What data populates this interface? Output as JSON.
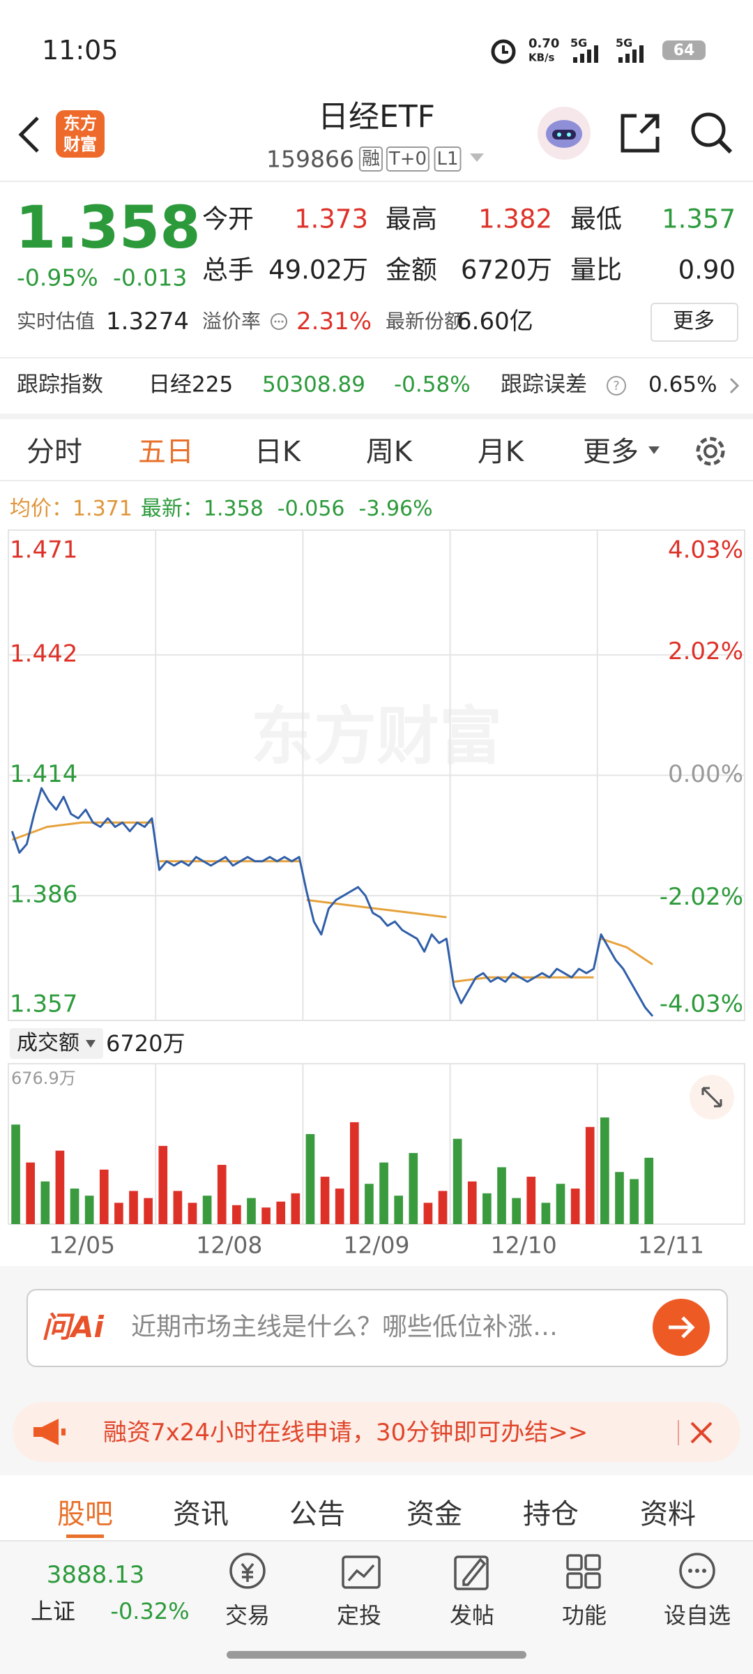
{
  "status": {
    "time": "11:05",
    "speed": "0.70",
    "speed_unit": "KB/s",
    "net1": "5G",
    "net2": "5G",
    "battery": "64"
  },
  "header": {
    "logo": [
      "东方",
      "财富"
    ],
    "title": "日经ETF",
    "code": "159866",
    "tags": [
      "融",
      "T+0",
      "L1"
    ]
  },
  "quote": {
    "price": "1.358",
    "change_pct": "-0.95%",
    "change": "-0.013",
    "stats": [
      [
        "今开",
        "1.373"
      ],
      [
        "最高",
        "1.382"
      ],
      [
        "最低",
        "1.357"
      ],
      [
        "总手",
        "49.02万"
      ],
      [
        "金额",
        "6720万"
      ],
      [
        "量比",
        "0.90"
      ]
    ],
    "estimate_label": "实时估值",
    "estimate": "1.3274",
    "premium_label": "溢价率",
    "premium": "2.31%",
    "shares_label": "最新份额",
    "shares": "6.60亿",
    "more": "更多"
  },
  "tracking": {
    "label": "跟踪指数",
    "index": "日经225",
    "value": "50308.89",
    "change": "-0.58%",
    "error_label": "跟踪误差",
    "error": "0.65%"
  },
  "tabs": [
    "分时",
    "五日",
    "日K",
    "周K",
    "月K",
    "更多"
  ],
  "chart_data": {
    "type": "line",
    "legend": {
      "avg_label": "均价：",
      "avg": "1.371",
      "last_label": "最新：",
      "last": "1.358",
      "change": "-0.056",
      "change_pct": "-3.96%"
    },
    "watermark": "东方财富",
    "categories": [
      "12/05",
      "12/08",
      "12/09",
      "12/10",
      "12/11"
    ],
    "ylim": [
      1.357,
      1.471
    ],
    "yticks": [
      1.357,
      1.386,
      1.414,
      1.442,
      1.471
    ],
    "y2lim": [
      -4.03,
      4.03
    ],
    "y2ticks": [
      {
        "value": -4.03,
        "label": "-4.03%"
      },
      {
        "value": -2.02,
        "label": "-2.02%"
      },
      {
        "value": 0,
        "label": "0.00%"
      },
      {
        "value": 2.02,
        "label": "2.02%"
      },
      {
        "value": 4.03,
        "label": "4.03%"
      }
    ],
    "price": {
      "color": "#2f5ea8",
      "sessions": [
        [
          1.401,
          1.396,
          1.398,
          1.405,
          1.411,
          1.408,
          1.406,
          1.409,
          1.405,
          1.404,
          1.406,
          1.403,
          1.402,
          1.404,
          1.402,
          1.403,
          1.401,
          1.403,
          1.402,
          1.404
        ],
        [
          1.392,
          1.394,
          1.393,
          1.394,
          1.393,
          1.395,
          1.394,
          1.393,
          1.394,
          1.395,
          1.393,
          1.394,
          1.395,
          1.394,
          1.394,
          1.395,
          1.394,
          1.395,
          1.394,
          1.395
        ],
        [
          1.387,
          1.38,
          1.377,
          1.383,
          1.385,
          1.386,
          1.387,
          1.388,
          1.386,
          1.382,
          1.381,
          1.379,
          1.38,
          1.378,
          1.377,
          1.376,
          1.373,
          1.377,
          1.375,
          1.376
        ],
        [
          1.365,
          1.361,
          1.364,
          1.367,
          1.368,
          1.366,
          1.367,
          1.366,
          1.368,
          1.367,
          1.366,
          1.367,
          1.368,
          1.367,
          1.369,
          1.368,
          1.367,
          1.369,
          1.368,
          1.369
        ],
        [
          1.377,
          1.374,
          1.371,
          1.369,
          1.366,
          1.363,
          1.36,
          1.358
        ]
      ]
    },
    "avg": {
      "color": "#e6a23c",
      "sessions": [
        [
          1.399,
          1.402,
          1.403,
          1.403,
          1.403
        ],
        [
          1.394,
          1.394,
          1.394,
          1.394,
          1.394
        ],
        [
          1.385,
          1.384,
          1.383,
          1.382,
          1.381
        ],
        [
          1.366,
          1.367,
          1.367,
          1.367,
          1.367
        ],
        [
          1.376,
          1.374,
          1.37
        ]
      ]
    },
    "volume": {
      "label": "成交额",
      "total": "6720万",
      "ylim": [
        0,
        676.9
      ],
      "yticks": [
        {
          "value": 676.9,
          "label": "676.9万"
        }
      ],
      "up_color": "#dd3128",
      "down_color": "#3a9a3e",
      "sessions": [
        [
          420,
          260,
          180,
          310,
          150,
          120,
          230,
          90,
          140,
          110
        ],
        [
          330,
          140,
          90,
          120,
          250,
          80,
          110,
          70,
          95,
          130
        ],
        [
          380,
          200,
          150,
          430,
          170,
          260,
          120,
          300,
          90,
          140
        ],
        [
          360,
          180,
          130,
          240,
          110,
          200,
          90,
          170,
          150,
          410
        ],
        [
          450,
          220,
          190,
          280
        ]
      ]
    }
  },
  "ai": {
    "logo": "问Ai",
    "prompt": "近期市场主线是什么？哪些低位补涨…"
  },
  "promo": "融资7x24小时在线申请，30分钟即可办结>>",
  "subtabs": [
    "股吧",
    "资讯",
    "公告",
    "资金",
    "持仓",
    "资料"
  ],
  "nav": {
    "index_value": "3888.13",
    "index_name": "上证",
    "index_change": "-0.32%",
    "items": [
      "交易",
      "定投",
      "发帖",
      "功能",
      "设自选"
    ]
  }
}
